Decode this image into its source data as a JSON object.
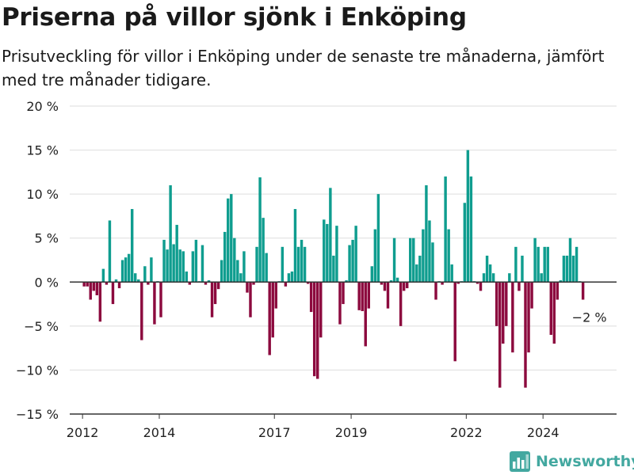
{
  "title": "Priserna på villor sjönk i Enköping",
  "subtitle": "Prisutveckling för villor i Enköping under de senaste tre månaderna, jämfört med tre månader tidigare.",
  "brand": {
    "name": "Newsworthy",
    "icon": "newsworthy-logo-icon"
  },
  "colors": {
    "positive": "#0f9d8f",
    "negative": "#8c0a3e",
    "grid": "#dddddd",
    "zero_line": "#333333",
    "brand": "#43a8a0"
  },
  "chart_data": {
    "type": "bar",
    "title": "Priserna på villor sjönk i Enköping",
    "subtitle": "Prisutveckling för villor i Enköping under de senaste tre månaderna, jämfört med tre månader tidigare.",
    "xlabel": "",
    "ylabel": "",
    "y_unit": "%",
    "ylim": [
      -15,
      20
    ],
    "yticks": [
      -15,
      -10,
      -5,
      0,
      5,
      10,
      15,
      20
    ],
    "ytick_labels": [
      "−15 %",
      "−10 %",
      "−5 %",
      "0 %",
      "5 %",
      "10 %",
      "15 %",
      "20 %"
    ],
    "x_start": "2012-01",
    "xlim": [
      "2011-09",
      "2025-12"
    ],
    "xticks": [
      "2012",
      "2014",
      "2017",
      "2019",
      "2022",
      "2024"
    ],
    "xtick_dates": [
      "2012-01",
      "2014-01",
      "2017-01",
      "2019-01",
      "2022-01",
      "2024-01"
    ],
    "grid": true,
    "annotation": {
      "text": "−2 %",
      "date": "2025-03"
    },
    "values": [
      -0.5,
      -0.5,
      -2,
      -1,
      -1.5,
      -4.5,
      1.5,
      -0.3,
      7,
      -2.5,
      0.3,
      -0.7,
      2.5,
      2.8,
      3.2,
      8.3,
      1,
      0.3,
      -6.6,
      1.8,
      -0.3,
      2.8,
      -4.8,
      0.1,
      -4,
      4.8,
      3.7,
      11,
      4.3,
      6.5,
      3.7,
      3.5,
      1.2,
      -0.3,
      3.5,
      4.8,
      0.1,
      4.2,
      -0.3,
      0.2,
      -4,
      -2.5,
      -0.8,
      2.5,
      5.7,
      9.5,
      10,
      5,
      2.5,
      1,
      3.5,
      -1.2,
      -4,
      -0.3,
      4,
      11.9,
      7.3,
      3.3,
      -8.3,
      -6.3,
      -3,
      0.1,
      4,
      -0.5,
      1,
      1.2,
      8.3,
      4,
      4.8,
      4,
      -0.2,
      -3.4,
      -10.7,
      -11,
      -6.3,
      7.1,
      6.6,
      10.7,
      3,
      6.4,
      -4.8,
      -2.5,
      0.2,
      4.2,
      4.8,
      6.4,
      -3.2,
      -3.3,
      -7.3,
      -3,
      1.8,
      6,
      10,
      -0.3,
      -1,
      -3,
      0.2,
      5,
      0.5,
      -5,
      -1,
      -0.7,
      5,
      5,
      2,
      3,
      6,
      11,
      7,
      4.5,
      -2,
      0.1,
      -0.3,
      12,
      6,
      2,
      -9,
      -0.2,
      0.1,
      9,
      15,
      12,
      0.1,
      -0.2,
      -1,
      1,
      3,
      2,
      1,
      -5,
      -12,
      -7,
      -5,
      1,
      -8,
      4,
      -1,
      3,
      -12,
      -8,
      -3,
      5,
      4,
      1,
      4,
      4,
      -6,
      -7,
      -2,
      0.2,
      3,
      3,
      5,
      3,
      4,
      0.1,
      -2
    ]
  }
}
